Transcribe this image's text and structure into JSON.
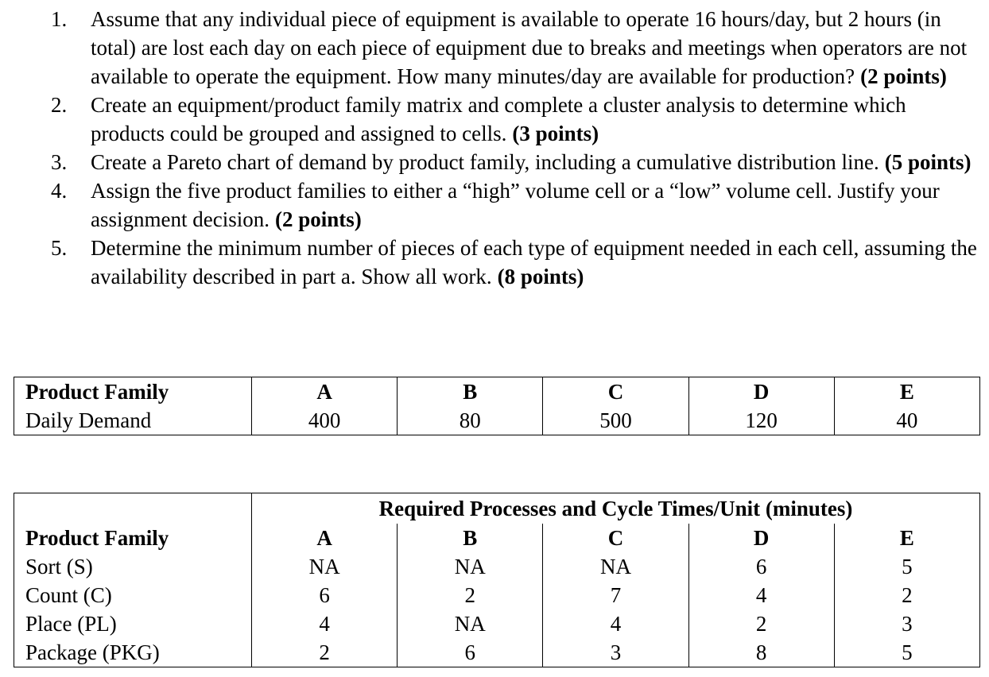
{
  "questions": [
    {
      "number": "1.",
      "text": "Assume that any individual piece of equipment is available to operate 16 hours/day, but 2 hours (in total) are lost each day on each piece of equipment due to breaks and meetings when operators are not available to operate the equipment. How many minutes/day are available for production?",
      "points": "(2 points)"
    },
    {
      "number": "2.",
      "text": "Create an equipment/product family matrix and complete a cluster analysis to determine which products could be grouped and assigned to cells.",
      "points": "(3 points)"
    },
    {
      "number": "3.",
      "text": "Create a Pareto chart of demand by product family, including a cumulative distribution line.",
      "points": "(5 points)"
    },
    {
      "number": "4.",
      "text": "Assign the five product families to either a “high” volume cell or a “low” volume cell. Justify your assignment decision.",
      "points": "(2 points)"
    },
    {
      "number": "5.",
      "text": "Determine the minimum number of pieces of each type of equipment needed in each cell, assuming the availability described in part a. Show all work.",
      "points": "(8 points)"
    }
  ],
  "demand_table": {
    "header": [
      "Product Family",
      "A",
      "B",
      "C",
      "D",
      "E"
    ],
    "rows": [
      [
        "Daily Demand",
        400,
        80,
        500,
        120,
        40
      ]
    ]
  },
  "process_table": {
    "title": "Required Processes and Cycle Times/Unit (minutes)",
    "header": [
      "Product Family",
      "A",
      "B",
      "C",
      "D",
      "E"
    ],
    "rows": [
      [
        "Sort (S)",
        "NA",
        "NA",
        "NA",
        6,
        5
      ],
      [
        "Count (C)",
        6,
        2,
        7,
        4,
        2
      ],
      [
        "Place (PL)",
        4,
        "NA",
        4,
        2,
        3
      ],
      [
        "Package (PKG)",
        2,
        6,
        3,
        8,
        5
      ]
    ]
  }
}
